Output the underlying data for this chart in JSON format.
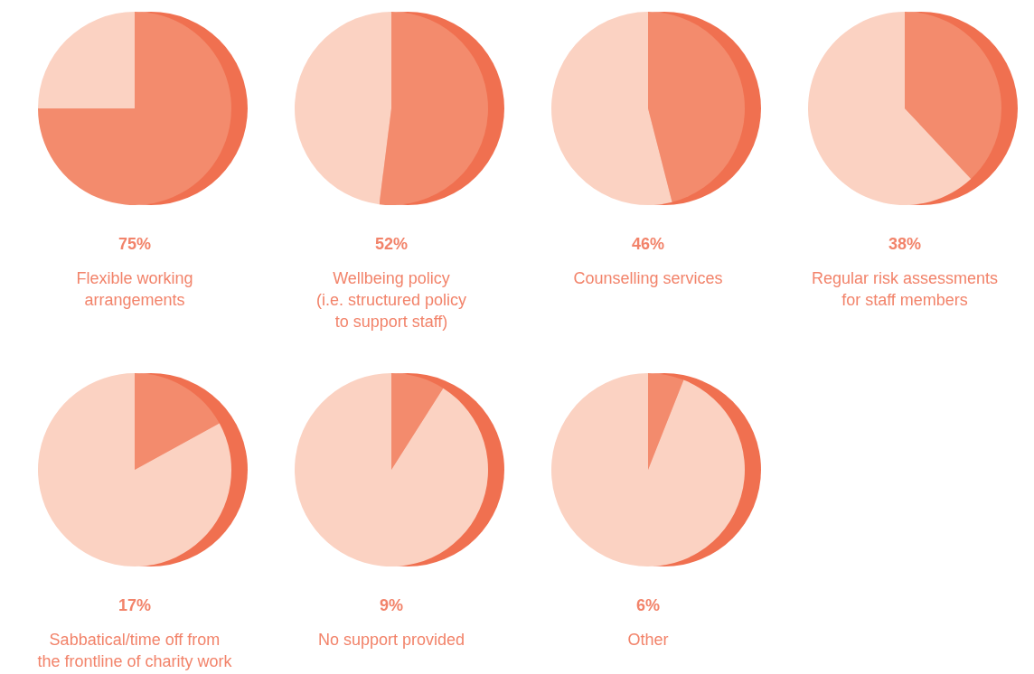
{
  "chart_data": [
    {
      "type": "pie",
      "title": "75%",
      "subtitle": "Flexible working\narrangements",
      "categories": [
        null,
        null
      ],
      "values": [
        75,
        25
      ],
      "colors": [
        "#f38b6d",
        "#fbd2c2"
      ]
    },
    {
      "type": "pie",
      "title": "52%",
      "subtitle": "Wellbeing policy\n(i.e. structured policy\nto support staff)",
      "categories": [
        null,
        null
      ],
      "values": [
        52,
        48
      ],
      "colors": [
        "#f38b6d",
        "#fbd2c2"
      ]
    },
    {
      "type": "pie",
      "title": "46%",
      "subtitle": "Counselling services",
      "categories": [
        null,
        null
      ],
      "values": [
        46,
        54
      ],
      "colors": [
        "#f38b6d",
        "#fbd2c2"
      ]
    },
    {
      "type": "pie",
      "title": "38%",
      "subtitle": "Regular risk assessments\nfor staff members",
      "categories": [
        null,
        null
      ],
      "values": [
        38,
        62
      ],
      "colors": [
        "#f38b6d",
        "#fbd2c2"
      ]
    },
    {
      "type": "pie",
      "title": "17%",
      "subtitle": "Sabbatical/time off from\nthe frontline of charity work",
      "categories": [
        null,
        null
      ],
      "values": [
        17,
        83
      ],
      "colors": [
        "#f38b6d",
        "#fbd2c2"
      ]
    },
    {
      "type": "pie",
      "title": "9%",
      "subtitle": "No support provided",
      "categories": [
        null,
        null
      ],
      "values": [
        9,
        91
      ],
      "colors": [
        "#f38b6d",
        "#fbd2c2"
      ]
    },
    {
      "type": "pie",
      "title": "6%",
      "subtitle": "Other",
      "categories": [
        null,
        null
      ],
      "values": [
        6,
        94
      ],
      "colors": [
        "#f38b6d",
        "#fbd2c2"
      ]
    }
  ]
}
